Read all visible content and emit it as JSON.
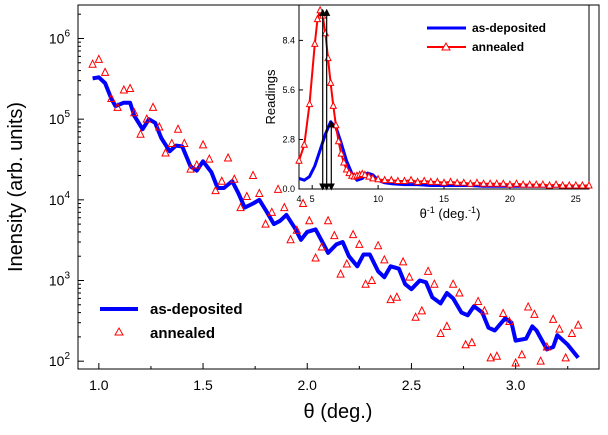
{
  "chart_data": [
    {
      "type": "scatter",
      "panel": "main",
      "xlabel": "θ (deg.)",
      "ylabel": "Inensity (arb. units)",
      "xlim": [
        0.9,
        3.4
      ],
      "ylim": [
        80,
        2600000
      ],
      "yscale": "log",
      "x_ticks": [
        1.0,
        1.5,
        2.0,
        2.5,
        3.0
      ],
      "x_tick_labels": [
        "1.0",
        "1.5",
        "2.0",
        "2.5",
        "3.0"
      ],
      "y_ticks": [
        100,
        1000,
        10000,
        100000,
        1000000
      ],
      "y_tick_labels": [
        {
          "base": "10",
          "exp": "2"
        },
        {
          "base": "10",
          "exp": "3"
        },
        {
          "base": "10",
          "exp": "4"
        },
        {
          "base": "10",
          "exp": "5"
        },
        {
          "base": "10",
          "exp": "6"
        }
      ],
      "legend": {
        "position": "bottom-left"
      },
      "series": [
        {
          "name": "as-deposited",
          "style": "line",
          "color": "#0000ff",
          "x": [
            0.97,
            1.0,
            1.03,
            1.06,
            1.08,
            1.12,
            1.15,
            1.17,
            1.21,
            1.24,
            1.27,
            1.3,
            1.34,
            1.37,
            1.4,
            1.44,
            1.47,
            1.5,
            1.54,
            1.57,
            1.6,
            1.64,
            1.67,
            1.7,
            1.74,
            1.77,
            1.8,
            1.84,
            1.87,
            1.9,
            1.94,
            1.97,
            2.0,
            2.04,
            2.07,
            2.1,
            2.14,
            2.17,
            2.2,
            2.24,
            2.27,
            2.3,
            2.34,
            2.37,
            2.4,
            2.44,
            2.47,
            2.5,
            2.54,
            2.57,
            2.6,
            2.64,
            2.67,
            2.7,
            2.74,
            2.77,
            2.8,
            2.84,
            2.87,
            2.9,
            2.95,
            2.98,
            3.0,
            3.05,
            3.08,
            3.1,
            3.15,
            3.18,
            3.2,
            3.25,
            3.3
          ],
          "y": [
            320000,
            330000,
            280000,
            180000,
            145000,
            160000,
            160000,
            110000,
            75000,
            100000,
            90000,
            58000,
            40000,
            47000,
            46000,
            26000,
            23000,
            30000,
            22000,
            14000,
            14000,
            17000,
            12000,
            8000,
            9000,
            10000,
            7500,
            5000,
            5500,
            6500,
            4500,
            3200,
            4000,
            4300,
            3100,
            2200,
            2800,
            3000,
            2000,
            1500,
            2100,
            2100,
            1300,
            1100,
            1500,
            1400,
            900,
            780,
            1000,
            950,
            620,
            520,
            700,
            600,
            400,
            370,
            480,
            400,
            260,
            240,
            340,
            300,
            180,
            190,
            270,
            240,
            140,
            150,
            210,
            160,
            110
          ]
        },
        {
          "name": "annealed",
          "style": "markers",
          "marker": "triangle-open",
          "color": "#ff0000",
          "x": [
            0.97,
            1.0,
            1.03,
            1.06,
            1.09,
            1.12,
            1.15,
            1.17,
            1.2,
            1.23,
            1.26,
            1.29,
            1.32,
            1.35,
            1.38,
            1.41,
            1.44,
            1.47,
            1.5,
            1.53,
            1.56,
            1.59,
            1.62,
            1.65,
            1.68,
            1.71,
            1.74,
            1.77,
            1.8,
            1.83,
            1.86,
            1.89,
            1.92,
            1.95,
            1.98,
            2.01,
            2.04,
            2.07,
            2.1,
            2.13,
            2.16,
            2.19,
            2.22,
            2.25,
            2.28,
            2.31,
            2.34,
            2.37,
            2.4,
            2.43,
            2.46,
            2.49,
            2.52,
            2.55,
            2.58,
            2.61,
            2.64,
            2.67,
            2.7,
            2.73,
            2.76,
            2.79,
            2.82,
            2.85,
            2.88,
            2.91,
            2.94,
            2.97,
            3.0,
            3.03,
            3.06,
            3.09,
            3.12,
            3.15,
            3.18,
            3.21,
            3.24,
            3.27,
            3.3
          ],
          "y": [
            480000,
            550000,
            380000,
            180000,
            140000,
            230000,
            240000,
            120000,
            65000,
            100000,
            140000,
            80000,
            38000,
            50000,
            75000,
            50000,
            24000,
            27000,
            48000,
            32000,
            13000,
            17000,
            33000,
            18000,
            8000,
            11000,
            20000,
            12000,
            5000,
            7000,
            13500,
            8000,
            3200,
            4200,
            9000,
            5500,
            1900,
            2600,
            5500,
            3600,
            1200,
            1600,
            3700,
            2800,
            900,
            1000,
            2700,
            1800,
            580,
            620,
            1700,
            1100,
            350,
            420,
            1300,
            900,
            220,
            270,
            900,
            700,
            160,
            170,
            550,
            420,
            110,
            115,
            390,
            310,
            95,
            120,
            470,
            380,
            100,
            150,
            330,
            250,
            110,
            220,
            280
          ]
        }
      ]
    },
    {
      "type": "line",
      "panel": "inset",
      "xlabel_base": "θ",
      "xlabel_sup": "-1",
      "xlabel_rest": " (deg.",
      "xlabel_sup2": "-1",
      "xlabel_end": ")",
      "ylabel": "Readings",
      "xlim": [
        4,
        26
      ],
      "ylim": [
        0,
        10.4
      ],
      "x_ticks": [
        4,
        5,
        10,
        15,
        20,
        25
      ],
      "x_tick_labels": [
        "4",
        "5",
        "10",
        "15",
        "20",
        "25"
      ],
      "y_ticks": [
        0.0,
        2.8,
        5.6,
        8.4
      ],
      "y_tick_labels": [
        "0.0",
        "2.8",
        "5.6",
        "8.4"
      ],
      "legend": {
        "position": "top-right"
      },
      "series": [
        {
          "name": "as-deposited",
          "color": "#0000ff",
          "x": [
            4.0,
            4.4,
            4.8,
            5.2,
            5.6,
            6.0,
            6.4,
            6.8,
            7.2,
            7.6,
            8.0,
            8.4,
            8.8,
            9.2,
            9.6,
            10.0,
            10.5,
            11.0,
            12.0,
            13.0,
            14.0,
            15.0,
            16.0,
            17.0,
            18.0,
            19.0,
            20.0,
            21.0,
            22.0,
            23.0,
            24.0,
            25.0,
            26.0
          ],
          "y": [
            0.6,
            0.5,
            0.7,
            1.3,
            2.2,
            3.1,
            3.8,
            3.5,
            2.6,
            1.6,
            0.9,
            0.5,
            0.6,
            0.9,
            0.8,
            0.5,
            0.35,
            0.3,
            0.25,
            0.25,
            0.2,
            0.2,
            0.2,
            0.2,
            0.15,
            0.15,
            0.15,
            0.15,
            0.15,
            0.15,
            0.15,
            0.15,
            0.15
          ]
        },
        {
          "name": "annealed",
          "color": "#ff0000",
          "marker": "triangle-open",
          "x": [
            4.0,
            4.4,
            4.8,
            5.2,
            5.4,
            5.6,
            5.8,
            6.0,
            6.2,
            6.4,
            6.6,
            6.8,
            7.0,
            7.2,
            7.4,
            7.6,
            7.8,
            8.0,
            8.2,
            8.4,
            8.6,
            8.8,
            9.0,
            9.3,
            9.6,
            10.0,
            10.5,
            11.0,
            11.5,
            12.0,
            12.5,
            13.0,
            13.5,
            14.0,
            14.5,
            15.0,
            15.5,
            16.0,
            16.5,
            17.0,
            17.5,
            18.0,
            18.5,
            19.0,
            19.5,
            20.0,
            20.5,
            21.0,
            21.5,
            22.0,
            22.5,
            23.0,
            23.5,
            24.0,
            24.5,
            25.0,
            25.5,
            26.0
          ],
          "y": [
            1.6,
            2.5,
            4.8,
            8.2,
            9.6,
            10.1,
            9.8,
            8.8,
            7.4,
            6.0,
            4.7,
            3.6,
            2.7,
            2.0,
            1.5,
            1.1,
            0.9,
            0.75,
            0.7,
            0.75,
            0.8,
            0.85,
            0.8,
            0.7,
            0.6,
            0.55,
            0.5,
            0.5,
            0.45,
            0.45,
            0.5,
            0.4,
            0.45,
            0.4,
            0.4,
            0.35,
            0.4,
            0.35,
            0.35,
            0.3,
            0.35,
            0.3,
            0.3,
            0.3,
            0.3,
            0.25,
            0.3,
            0.25,
            0.25,
            0.25,
            0.25,
            0.2,
            0.25,
            0.2,
            0.2,
            0.2,
            0.2,
            0.2
          ]
        }
      ],
      "annotations": [
        {
          "type": "double-arrow",
          "x": 5.8,
          "y_from": 0,
          "y_to": 10.1,
          "color": "#000000"
        },
        {
          "type": "double-arrow",
          "x": 6.1,
          "y_from": 0,
          "y_to": 10.1,
          "color": "#000000"
        },
        {
          "type": "double-arrow",
          "x": 6.45,
          "y_from": 0,
          "y_to": 3.8,
          "color": "#000000"
        }
      ]
    }
  ]
}
